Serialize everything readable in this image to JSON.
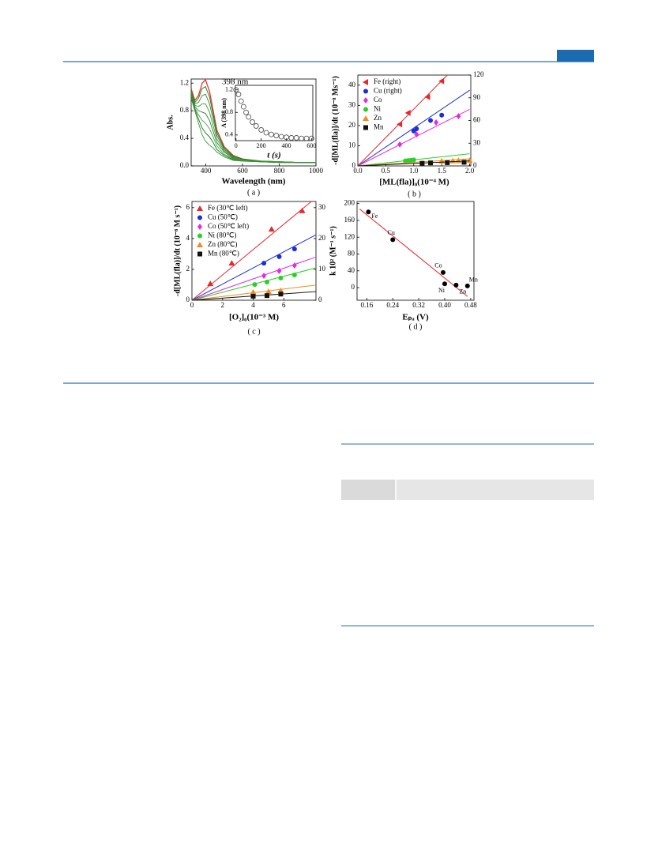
{
  "chart_data": [
    {
      "type": "line",
      "caption": "( a )",
      "xlabel": "Wavelength (nm)",
      "ylabel": "Abs.",
      "annotation": "398 nm",
      "x": [
        320,
        340,
        360,
        380,
        398,
        420,
        440,
        460,
        500,
        550,
        600,
        700,
        800,
        900,
        1000
      ],
      "xlim": [
        320,
        1000
      ],
      "xticks": [
        400,
        600,
        800,
        1000
      ],
      "ylim": [
        0,
        1.26
      ],
      "yticks": [
        {
          "value": 0,
          "label": "0.0"
        },
        0.4,
        0.8,
        1.2
      ],
      "series": [
        {
          "color": "#e03a2a",
          "values": [
            1.12,
            0.95,
            1.02,
            1.2,
            1.25,
            1.08,
            0.8,
            0.52,
            0.28,
            0.15,
            0.1,
            0.07,
            0.06,
            0.05,
            0.05
          ]
        },
        {
          "color": "#1f7a1f",
          "values": [
            1.1,
            0.92,
            0.98,
            1.12,
            1.15,
            1.0,
            0.74,
            0.48,
            0.26,
            0.14,
            0.1,
            0.07,
            0.06,
            0.05,
            0.05
          ]
        },
        {
          "color": "#2e8b2e",
          "values": [
            1.08,
            0.9,
            0.92,
            1.02,
            1.04,
            0.9,
            0.67,
            0.44,
            0.24,
            0.13,
            0.09,
            0.07,
            0.06,
            0.05,
            0.05
          ]
        },
        {
          "color": "#3a9a3a",
          "values": [
            1.06,
            0.88,
            0.86,
            0.9,
            0.9,
            0.78,
            0.58,
            0.39,
            0.22,
            0.12,
            0.09,
            0.07,
            0.06,
            0.05,
            0.05
          ]
        },
        {
          "color": "#2a7f2a",
          "values": [
            1.04,
            0.86,
            0.8,
            0.78,
            0.76,
            0.66,
            0.5,
            0.34,
            0.2,
            0.11,
            0.08,
            0.06,
            0.05,
            0.05,
            0.05
          ]
        },
        {
          "color": "#45a045",
          "values": [
            1.02,
            0.84,
            0.74,
            0.66,
            0.62,
            0.54,
            0.42,
            0.29,
            0.17,
            0.1,
            0.08,
            0.06,
            0.05,
            0.05,
            0.05
          ]
        },
        {
          "color": "#1e6e1e",
          "values": [
            1.0,
            0.82,
            0.68,
            0.55,
            0.48,
            0.42,
            0.34,
            0.24,
            0.15,
            0.09,
            0.07,
            0.06,
            0.05,
            0.05,
            0.05
          ]
        },
        {
          "color": "#339933",
          "values": [
            0.98,
            0.8,
            0.62,
            0.45,
            0.36,
            0.3,
            0.26,
            0.2,
            0.13,
            0.08,
            0.07,
            0.06,
            0.05,
            0.05,
            0.05
          ]
        }
      ]
    },
    {
      "type": "scatter",
      "xlabel": "t (s)",
      "ylabel": "A (398 nm)",
      "x": [
        0,
        20,
        40,
        60,
        80,
        100,
        130,
        160,
        200,
        240,
        280,
        320,
        360,
        400,
        440,
        480,
        520,
        560,
        600
      ],
      "xlim": [
        -5,
        610
      ],
      "xticks": [
        0,
        200,
        400,
        600
      ],
      "ylim": [
        0.3,
        1.28
      ],
      "yticks": [
        0.4,
        0.8,
        1.2
      ],
      "series": [
        {
          "color": "#444444",
          "marker": "open-circle",
          "values": [
            1.2,
            1.12,
            1.0,
            0.9,
            0.8,
            0.72,
            0.63,
            0.56,
            0.49,
            0.44,
            0.41,
            0.39,
            0.37,
            0.36,
            0.35,
            0.35,
            0.34,
            0.34,
            0.34
          ]
        }
      ]
    },
    {
      "type": "scatter",
      "caption": "( b )",
      "xlabel": "[ML(fla)]₀(10⁻⁴ M)",
      "ylabel": "-d[ML(fla)]/dt (10⁻⁸ Ms⁻¹)",
      "xlim": [
        0,
        2.02
      ],
      "xticks": [
        {
          "value": 0,
          "label": "0.0"
        },
        0.5,
        {
          "value": 1,
          "label": "1.0"
        },
        1.5,
        {
          "value": 2,
          "label": "2.0"
        }
      ],
      "ylim": [
        0,
        45
      ],
      "yticks": [
        0,
        10,
        20,
        30,
        40
      ],
      "y2lim": [
        0,
        120
      ],
      "y2ticks": [
        0,
        30,
        60,
        90,
        120
      ],
      "legend": "upper left",
      "series": [
        {
          "name": "Fe (right)",
          "color": "#e8262b",
          "marker": "triangle-left",
          "axis": "y2",
          "x": [
            0.75,
            0.9,
            1.25,
            1.5
          ],
          "values": [
            55,
            70,
            91,
            112
          ],
          "fit_x": [
            0,
            1.6
          ],
          "fit_values": [
            0,
            120
          ]
        },
        {
          "name": "Cu (right)",
          "color": "#1c2fd6",
          "marker": "circle",
          "axis": "y2",
          "x": [
            1.0,
            1.05,
            1.3,
            1.5
          ],
          "values": [
            46,
            49,
            60,
            67
          ],
          "fit_x": [
            0,
            2.0
          ],
          "fit_values": [
            0,
            100
          ]
        },
        {
          "name": "Co",
          "color": "#e52ae5",
          "marker": "diamond",
          "x": [
            0.75,
            1.05,
            1.4,
            1.8
          ],
          "values": [
            10.6,
            15.6,
            21.5,
            24.6
          ],
          "fit_x": [
            0,
            2.0
          ],
          "fit_values": [
            0,
            28
          ]
        },
        {
          "name": "Ni",
          "color": "#27d127",
          "marker": "circle",
          "x": [
            0.85,
            0.9,
            0.95,
            1.0
          ],
          "values": [
            2.5,
            2.7,
            2.8,
            3.0
          ],
          "fit_x": [
            0,
            2.0
          ],
          "fit_values": [
            0,
            6
          ]
        },
        {
          "name": "Zn",
          "color": "#f28c1e",
          "marker": "triangle-up",
          "x": [
            1.5,
            1.7,
            1.8,
            2.0
          ],
          "values": [
            2.4,
            2.5,
            2.6,
            2.7
          ],
          "fit_x": [
            0,
            2.0
          ],
          "fit_values": [
            0,
            3.5
          ]
        },
        {
          "name": "Mn",
          "color": "#111111",
          "marker": "square",
          "x": [
            1.15,
            1.3,
            1.6,
            1.9
          ],
          "values": [
            1.3,
            1.5,
            1.6,
            1.8
          ],
          "fit_x": [
            0,
            2.0
          ],
          "fit_values": [
            0,
            2.5
          ]
        }
      ]
    },
    {
      "type": "scatter",
      "caption": "( c )",
      "xlabel": "[O₂]₀(10⁻³ M)",
      "ylabel": "-d[ML(fla)]/dt (10⁻⁸ M s⁻¹)",
      "xlim": [
        0,
        8.1
      ],
      "xticks": [
        0,
        2,
        4,
        6
      ],
      "ylim": [
        0,
        6.4
      ],
      "yticks": [
        0,
        2,
        4,
        6
      ],
      "y2lim": [
        0,
        32
      ],
      "y2ticks": [
        0,
        10,
        20,
        30
      ],
      "legend": "upper left",
      "series": [
        {
          "name": "Fe (30℃ left)",
          "color": "#e8262b",
          "marker": "triangle-up",
          "x": [
            1.2,
            2.6,
            5.2,
            7.2
          ],
          "values": [
            1.07,
            2.4,
            4.6,
            5.8
          ],
          "fit_x": [
            0,
            7.8
          ],
          "fit_values": [
            0,
            6.4
          ]
        },
        {
          "name": "Cu (50℃)",
          "color": "#1c2fd6",
          "marker": "circle",
          "axis": "y2",
          "x": [
            4.7,
            5.7,
            6.7
          ],
          "values": [
            12.0,
            14.1,
            16.6
          ],
          "fit_x": [
            0,
            8.1
          ],
          "fit_values": [
            0,
            21.2
          ]
        },
        {
          "name": "Co (50℃ left)",
          "color": "#e52ae5",
          "marker": "diamond",
          "x": [
            4.7,
            5.7,
            6.7
          ],
          "values": [
            1.59,
            1.9,
            2.25
          ],
          "fit_x": [
            0,
            8.1
          ],
          "fit_values": [
            0,
            2.8
          ]
        },
        {
          "name": "Ni (80℃)",
          "color": "#27d127",
          "marker": "circle",
          "axis": "y2",
          "x": [
            4.1,
            4.9,
            5.8,
            6.7
          ],
          "values": [
            5.1,
            5.9,
            7.2,
            8.2
          ],
          "fit_x": [
            0,
            8.1
          ],
          "fit_values": [
            0,
            10.5
          ]
        },
        {
          "name": "Zn (80℃)",
          "color": "#f28c1e",
          "marker": "triangle-up",
          "axis": "y2",
          "x": [
            4.0,
            5.0,
            5.8
          ],
          "values": [
            2.6,
            2.8,
            3.1
          ],
          "fit_x": [
            0,
            8.1
          ],
          "fit_values": [
            0,
            4.9
          ]
        },
        {
          "name": "Mn (80℃)",
          "color": "#111111",
          "marker": "square",
          "axis": "y2",
          "x": [
            4.0,
            4.9,
            5.8
          ],
          "values": [
            1.3,
            1.5,
            2.0
          ],
          "fit_x": [
            0,
            8.1
          ],
          "fit_values": [
            0,
            2.8
          ]
        }
      ]
    },
    {
      "type": "scatter",
      "caption": "( d )",
      "xlabel": "Eₚₐ (V)",
      "ylabel": "k 10² (M⁻¹ s⁻¹)",
      "xlim": [
        0.13,
        0.49
      ],
      "xticks": [
        0.16,
        0.24,
        0.32,
        {
          "value": 0.4,
          "label": "0.40"
        },
        0.48
      ],
      "ylim": [
        -30,
        205
      ],
      "yticks": [
        0,
        40,
        80,
        120,
        160,
        200
      ],
      "series": [
        {
          "color": "#000000",
          "marker": "circle",
          "x": [
            0.165,
            0.24,
            0.395,
            0.4,
            0.435,
            0.47
          ],
          "values": [
            180,
            114,
            36,
            9,
            6,
            4
          ],
          "point_labels": [
            "Fe",
            "Cu",
            "Co",
            "Ni",
            "Zn",
            "Mn"
          ],
          "fit_color": "#e8262b",
          "fit_x": [
            0.138,
            0.47
          ],
          "fit_values": [
            187,
            -21
          ]
        }
      ]
    }
  ]
}
